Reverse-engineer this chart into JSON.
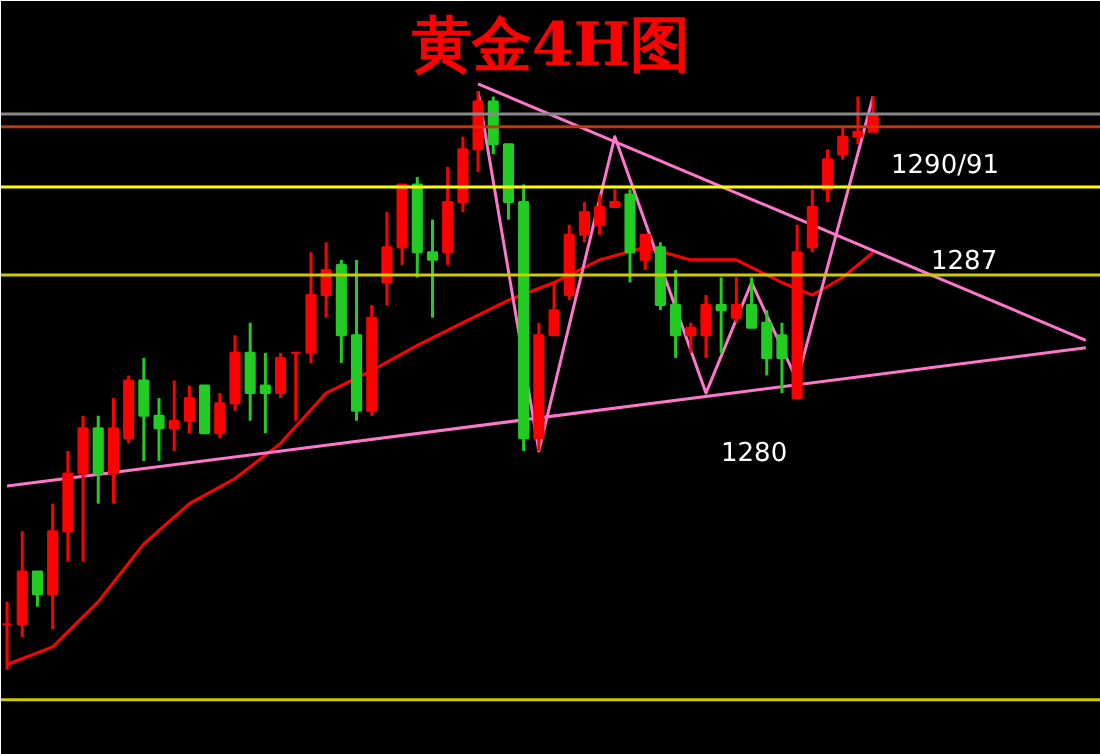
{
  "chart_data": {
    "type": "candlestick",
    "title": "黄金4H图",
    "grid": false,
    "tick_labels": false,
    "ylim": [
      1267.9,
      1297.9
    ],
    "categories": [
      null,
      null,
      null,
      null,
      null,
      null,
      null,
      null,
      null,
      null,
      null,
      null,
      null,
      null,
      null,
      null,
      null,
      null,
      null,
      null,
      null,
      null,
      null,
      null,
      null,
      null,
      null,
      null,
      null,
      null,
      null,
      null,
      null,
      null,
      null,
      null,
      null,
      null,
      null,
      null,
      null,
      null,
      null,
      null,
      null,
      null,
      null,
      null,
      null,
      null,
      null,
      null,
      null,
      null,
      null,
      null,
      null,
      null,
      null,
      null,
      null,
      null,
      null,
      null,
      null,
      null,
      null,
      null,
      null,
      null,
      null,
      null
    ],
    "ohlc": [
      [
        1273.1,
        1274.0,
        1271.3,
        1273.1
      ],
      [
        1273.1,
        1276.8,
        1272.6,
        1275.2
      ],
      [
        1275.2,
        1275.2,
        1273.8,
        1274.3
      ],
      [
        1274.3,
        1277.9,
        1272.9,
        1276.8
      ],
      [
        1276.8,
        1280.0,
        1275.6,
        1279.1
      ],
      [
        1279.1,
        1281.4,
        1275.6,
        1280.9
      ],
      [
        1280.9,
        1281.4,
        1277.9,
        1279.1
      ],
      [
        1279.1,
        1282.1,
        1277.9,
        1280.9
      ],
      [
        1280.5,
        1283.0,
        1280.3,
        1282.8
      ],
      [
        1282.8,
        1283.7,
        1279.6,
        1281.4
      ],
      [
        1281.4,
        1282.1,
        1279.6,
        1280.9
      ],
      [
        1280.9,
        1282.8,
        1280.0,
        1281.2
      ],
      [
        1281.2,
        1282.6,
        1280.7,
        1282.1
      ],
      [
        1282.6,
        1282.6,
        1280.7,
        1280.7
      ],
      [
        1280.7,
        1282.3,
        1280.5,
        1281.9
      ],
      [
        1281.9,
        1284.6,
        1281.6,
        1283.9
      ],
      [
        1283.9,
        1285.1,
        1281.2,
        1282.3
      ],
      [
        1282.6,
        1283.9,
        1280.7,
        1282.3
      ],
      [
        1282.3,
        1283.9,
        1282.1,
        1283.7
      ],
      [
        1283.9,
        1283.9,
        1281.2,
        1283.9
      ],
      [
        1283.9,
        1287.9,
        1283.5,
        1286.2
      ],
      [
        1286.2,
        1288.3,
        1285.3,
        1287.2
      ],
      [
        1287.4,
        1287.6,
        1283.5,
        1284.6
      ],
      [
        1284.6,
        1287.6,
        1281.2,
        1281.6
      ],
      [
        1281.6,
        1285.8,
        1281.4,
        1285.3
      ],
      [
        1286.7,
        1289.5,
        1285.8,
        1288.1
      ],
      [
        1288.1,
        1290.6,
        1287.4,
        1290.6
      ],
      [
        1290.6,
        1290.9,
        1286.9,
        1287.9
      ],
      [
        1287.9,
        1289.2,
        1285.3,
        1287.6
      ],
      [
        1287.9,
        1291.3,
        1287.4,
        1289.9
      ],
      [
        1289.9,
        1292.5,
        1289.5,
        1292.0
      ],
      [
        1292.0,
        1294.3,
        1291.1,
        1293.9
      ],
      [
        1293.9,
        1294.1,
        1291.8,
        1292.2
      ],
      [
        1292.2,
        1292.2,
        1289.2,
        1289.9
      ],
      [
        1289.9,
        1290.6,
        1280.0,
        1280.5
      ],
      [
        1280.5,
        1285.1,
        1280.0,
        1284.6
      ],
      [
        1284.6,
        1286.7,
        1284.6,
        1285.6
      ],
      [
        1286.2,
        1289.0,
        1286.0,
        1288.6
      ],
      [
        1288.6,
        1289.9,
        1288.3,
        1289.5
      ],
      [
        1289.0,
        1290.2,
        1288.6,
        1289.7
      ],
      [
        1289.7,
        1290.4,
        1289.7,
        1289.9
      ],
      [
        1290.2,
        1290.4,
        1286.7,
        1287.9
      ],
      [
        1287.6,
        1288.6,
        1287.2,
        1288.6
      ],
      [
        1288.1,
        1288.3,
        1285.6,
        1285.8
      ],
      [
        1285.8,
        1287.2,
        1283.7,
        1284.6
      ],
      [
        1284.6,
        1285.1,
        1283.9,
        1284.9
      ],
      [
        1284.6,
        1286.2,
        1283.7,
        1285.8
      ],
      [
        1285.8,
        1286.9,
        1283.9,
        1285.6
      ],
      [
        1285.3,
        1286.9,
        1285.1,
        1285.8
      ],
      [
        1285.8,
        1286.9,
        1284.9,
        1284.9
      ],
      [
        1285.1,
        1285.6,
        1283.0,
        1283.7
      ],
      [
        1284.6,
        1285.1,
        1282.3,
        1283.7
      ],
      [
        1282.1,
        1289.0,
        1282.1,
        1287.9
      ],
      [
        1288.1,
        1290.4,
        1287.9,
        1289.7
      ],
      [
        1290.4,
        1292.0,
        1289.9,
        1291.6
      ],
      [
        1291.8,
        1292.9,
        1291.6,
        1292.5
      ],
      [
        1292.5,
        1294.1,
        1292.2,
        1292.7
      ],
      [
        1292.7,
        1294.1,
        1292.7,
        1293.4
      ],
      null,
      null,
      null,
      null,
      null,
      null,
      null,
      null,
      null,
      null,
      null,
      null,
      null,
      null
    ],
    "colors": [
      "#ff0000",
      "#ff0000",
      "#22cc22",
      "#ff0000",
      "#ff0000",
      "#ff0000",
      "#22cc22",
      "#ff0000",
      "#ff0000",
      "#22cc22",
      "#22cc22",
      "#ff0000",
      "#ff0000",
      "#22cc22",
      "#ff0000",
      "#ff0000",
      "#22cc22",
      "#22cc22",
      "#ff0000",
      "#ff0000",
      "#ff0000",
      "#ff0000",
      "#22cc22",
      "#22cc22",
      "#ff0000",
      "#ff0000",
      "#ff0000",
      "#22cc22",
      "#22cc22",
      "#ff0000",
      "#ff0000",
      "#ff0000",
      "#22cc22",
      "#22cc22",
      "#22cc22",
      "#ff0000",
      "#ff0000",
      "#ff0000",
      "#ff0000",
      "#ff0000",
      "#ff0000",
      "#22cc22",
      "#ff0000",
      "#22cc22",
      "#22cc22",
      "#ff0000",
      "#ff0000",
      "#22cc22",
      "#ff0000",
      "#22cc22",
      "#22cc22",
      "#22cc22",
      "#ff0000",
      "#ff0000",
      "#ff0000",
      "#ff0000",
      "#ff0000",
      "#ff0000",
      null,
      null,
      null,
      null,
      null,
      null,
      null,
      null,
      null,
      null,
      null,
      null,
      null,
      null
    ],
    "series": [
      {
        "type": "line",
        "color": "#ff0000",
        "values": [
          1271.5,
          null,
          null,
          1272.2,
          null,
          null,
          1274.0,
          null,
          null,
          1276.3,
          null,
          null,
          1277.9,
          null,
          null,
          1278.9,
          null,
          null,
          1280.3,
          null,
          null,
          1282.3,
          null,
          null,
          1283.2,
          null,
          null,
          1284.2,
          null,
          null,
          1285.1,
          null,
          null,
          1286.0,
          null,
          null,
          1286.7,
          null,
          null,
          1287.6,
          null,
          null,
          1288.1,
          null,
          null,
          1287.6,
          null,
          null,
          1287.6,
          null,
          null,
          1286.7,
          null,
          1286.2,
          null,
          1286.9,
          null,
          1287.9,
          null,
          null,
          null,
          null,
          null,
          null,
          null,
          null,
          null,
          null,
          null,
          null,
          null,
          null
        ]
      },
      {
        "type": "line",
        "color": "#ff77cc",
        "values": [
          null,
          null,
          null,
          null,
          null,
          null,
          null,
          null,
          null,
          null,
          null,
          null,
          null,
          null,
          null,
          null,
          null,
          null,
          null,
          null,
          null,
          null,
          null,
          null,
          null,
          null,
          null,
          null,
          null,
          null,
          null,
          1294.6,
          null,
          null,
          null,
          null,
          null,
          null,
          null,
          null,
          null,
          null,
          null,
          null,
          null,
          null,
          null,
          null,
          null,
          null,
          null,
          null,
          null,
          null,
          null,
          null,
          null,
          null,
          null,
          null,
          null,
          null,
          null,
          null,
          null,
          null,
          null,
          null,
          null,
          null,
          null,
          1284.4
        ]
      },
      {
        "type": "line",
        "color": "#ff77cc",
        "values": [
          1278.6,
          null,
          null,
          null,
          null,
          null,
          null,
          null,
          null,
          null,
          null,
          null,
          null,
          null,
          null,
          null,
          null,
          null,
          null,
          null,
          null,
          null,
          null,
          null,
          null,
          null,
          null,
          null,
          null,
          null,
          null,
          null,
          null,
          null,
          null,
          null,
          null,
          null,
          null,
          null,
          null,
          null,
          null,
          null,
          null,
          null,
          null,
          null,
          null,
          null,
          null,
          null,
          null,
          null,
          null,
          null,
          null,
          null,
          null,
          null,
          null,
          null,
          null,
          null,
          null,
          null,
          null,
          null,
          null,
          null,
          null,
          1284.1
        ]
      },
      {
        "type": "line",
        "color": "#ff77cc",
        "values": [
          null,
          null,
          null,
          null,
          null,
          null,
          null,
          null,
          null,
          null,
          null,
          null,
          null,
          null,
          null,
          null,
          null,
          null,
          null,
          null,
          null,
          null,
          null,
          null,
          null,
          null,
          null,
          null,
          null,
          null,
          null,
          1294.3,
          null,
          null,
          null,
          1280.0,
          null,
          null,
          null,
          null,
          1292.5,
          null,
          null,
          null,
          null,
          null,
          1282.3,
          null,
          null,
          1286.7,
          null,
          null,
          1282.8,
          null,
          null,
          null,
          null,
          1294.1,
          null,
          null,
          null,
          null,
          null,
          null,
          null,
          null,
          null,
          null,
          null,
          null,
          null,
          null
        ]
      }
    ],
    "ref_lines": [
      {
        "axis": "y",
        "value": 1293.4,
        "label": null,
        "color": "#888888"
      },
      {
        "axis": "y",
        "value": 1292.9,
        "label": null,
        "color": "#cc3300"
      },
      {
        "axis": "y",
        "value": 1290.5,
        "label": "1290/91",
        "color": "#ffff00"
      },
      {
        "axis": "y",
        "value": 1287,
        "label": "1287",
        "color": "#cccc00"
      },
      {
        "axis": "y",
        "value": 1270.1,
        "label": null,
        "color": "#cccc00"
      }
    ],
    "annotations": [
      "1280"
    ]
  }
}
